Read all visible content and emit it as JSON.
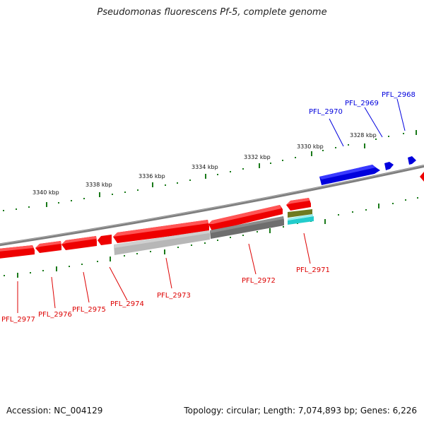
{
  "title": "Pseudomonas fluorescens Pf-5, complete genome",
  "footer": {
    "accession": "Accession: NC_004129",
    "summary": "Topology: circular; Length: 7,074,893 bp; Genes: 6,226"
  },
  "scale": {
    "unit": "kbp",
    "labels": [
      "3328 kbp",
      "3330 kbp",
      "3332 kbp",
      "3334 kbp",
      "3336 kbp",
      "3338 kbp",
      "3340 kbp"
    ]
  },
  "colors": {
    "forward_gene": "#0000dd",
    "reverse_gene": "#ee0000",
    "backbone": "#888888",
    "tick": "#1a7a1a",
    "cds_grey": "#777777",
    "cds_light_grey": "#bbbbbb",
    "feature_olive": "#6e7a20",
    "feature_cyan": "#22cccc"
  },
  "genes_forward": [
    {
      "name": "PFL_2970"
    },
    {
      "name": "PFL_2969"
    },
    {
      "name": "PFL_2968"
    }
  ],
  "genes_reverse": [
    {
      "name": "PFL_2971"
    },
    {
      "name": "PFL_2972"
    },
    {
      "name": "PFL_2973"
    },
    {
      "name": "PFL_2974"
    },
    {
      "name": "PFL_2975"
    },
    {
      "name": "PFL_2976"
    },
    {
      "name": "PFL_2977"
    }
  ]
}
